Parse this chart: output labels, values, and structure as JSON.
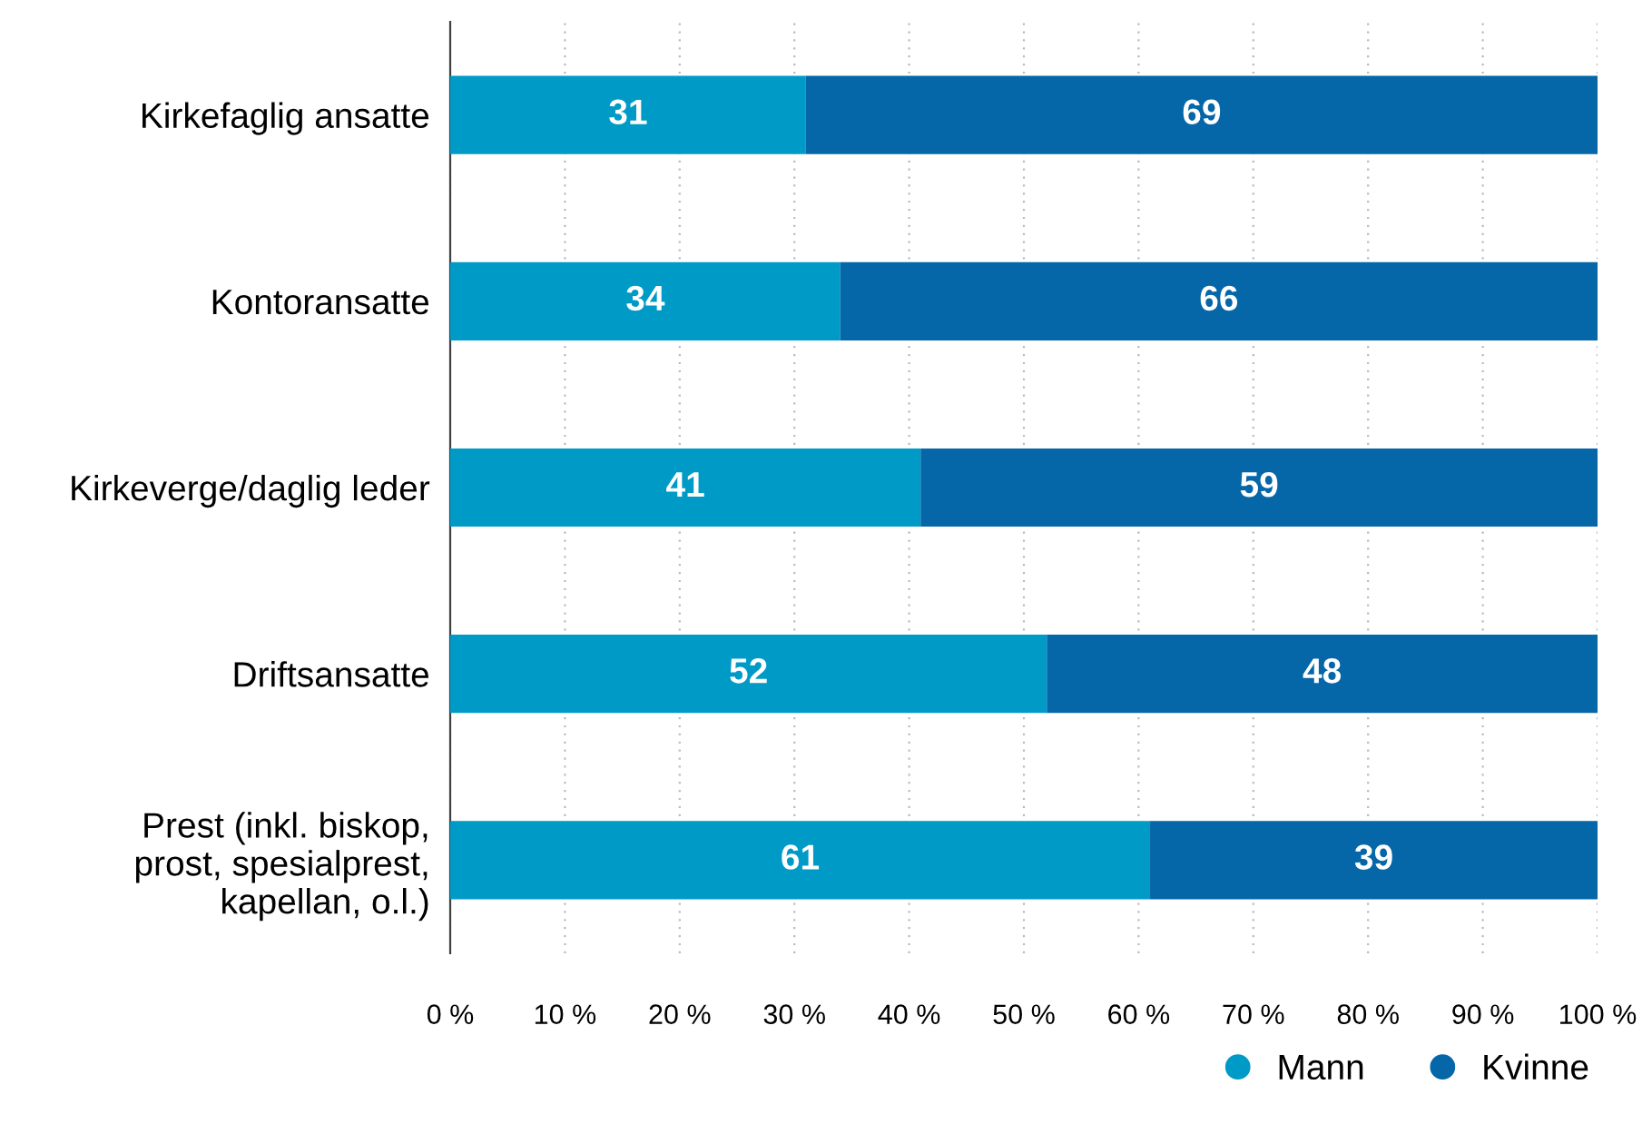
{
  "chart_data": {
    "type": "bar",
    "orientation": "horizontal",
    "stacked": true,
    "categories": [
      "Kirkefaglig ansatte",
      "Kontoransatte",
      "Kirkeverge/daglig leder",
      "Driftsansatte",
      "Prest (inkl. biskop,\nprost, spesialprest,\nkapellan, o.l.)"
    ],
    "series": [
      {
        "name": "Mann",
        "color": "#009ac7",
        "values": [
          31,
          34,
          41,
          52,
          61
        ]
      },
      {
        "name": "Kvinne",
        "color": "#0566a8",
        "values": [
          69,
          66,
          59,
          48,
          39
        ]
      }
    ],
    "xlim": [
      0,
      100
    ],
    "xticks": [
      {
        "value": 0,
        "label": "0 %"
      },
      {
        "value": 10,
        "label": "10 %"
      },
      {
        "value": 20,
        "label": "20 %"
      },
      {
        "value": 30,
        "label": "30 %"
      },
      {
        "value": 40,
        "label": "40 %"
      },
      {
        "value": 50,
        "label": "50 %"
      },
      {
        "value": 60,
        "label": "60 %"
      },
      {
        "value": 70,
        "label": "70 %"
      },
      {
        "value": 80,
        "label": "80 %"
      },
      {
        "value": 90,
        "label": "90 %"
      },
      {
        "value": 100,
        "label": "100 %"
      }
    ],
    "grid": "x",
    "data_labels": true,
    "legend": "bottom right",
    "marker": "circle"
  }
}
